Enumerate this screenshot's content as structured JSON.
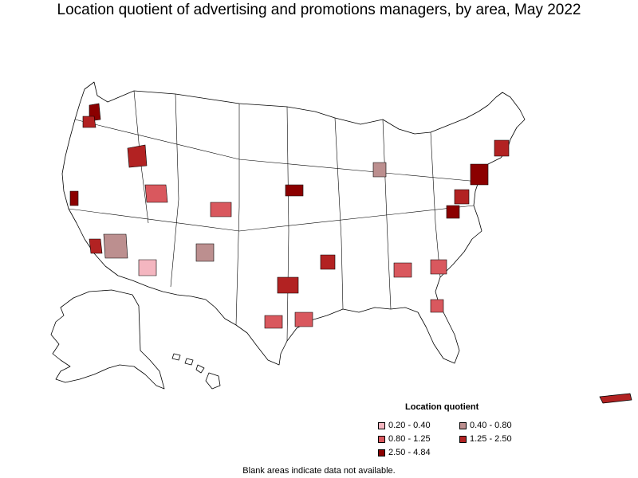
{
  "title": "Location quotient of advertising and promotions managers, by area, May 2022",
  "legend": {
    "title": "Location quotient",
    "items": [
      {
        "label": "0.20 - 0.40",
        "color": "#f4b6c0"
      },
      {
        "label": "0.40 - 0.80",
        "color": "#bc8f8f"
      },
      {
        "label": "0.80 - 1.25",
        "color": "#d9585e"
      },
      {
        "label": "1.25 - 2.50",
        "color": "#b22222"
      },
      {
        "label": "2.50 - 4.84",
        "color": "#8b0000"
      }
    ]
  },
  "note": "Blank areas indicate data not available.",
  "colors": {
    "no_data": "#ffffff",
    "border": "#000000"
  }
}
